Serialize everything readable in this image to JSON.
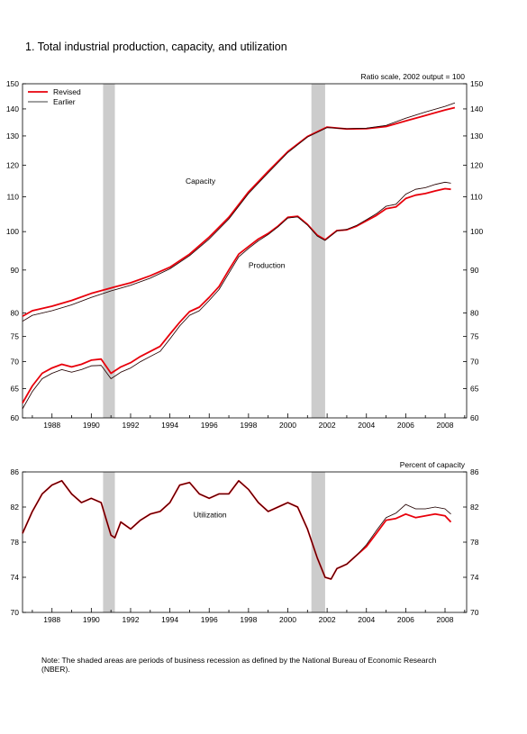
{
  "title": "1. Total industrial production, capacity, and utilization",
  "note": "Note: The shaded areas are periods of business recession as defined by the National Bureau of Economic Research (NBER).",
  "colors": {
    "revised": "#e8000b",
    "earlier": "#000000",
    "recession": "#cccccc"
  },
  "chart_data": [
    {
      "type": "line",
      "scale": "log",
      "scale_note": "Ratio scale, 2002 output = 100",
      "legend": [
        "Revised",
        "Earlier"
      ],
      "legend_position": "top-left",
      "xlim": [
        1986.5,
        2009.1
      ],
      "ylim": [
        60,
        150
      ],
      "x_ticks": [
        "1988",
        "1990",
        "1992",
        "1994",
        "1996",
        "1998",
        "2000",
        "2002",
        "2004",
        "2006",
        "2008"
      ],
      "y_ticks": [
        60,
        65,
        70,
        75,
        80,
        90,
        100,
        110,
        120,
        130,
        140,
        150
      ],
      "recessions": [
        [
          1990.6,
          1991.2
        ],
        [
          2001.2,
          2001.9
        ]
      ],
      "annotations": [
        {
          "text": "Capacity",
          "x": 1994.8,
          "y": 114
        },
        {
          "text": "Production",
          "x": 1998.0,
          "y": 90.5
        }
      ],
      "series": [
        {
          "name": "Revised",
          "label": "Capacity",
          "x": [
            1986.5,
            1987,
            1988,
            1989,
            1990,
            1991,
            1992,
            1993,
            1994,
            1995,
            1996,
            1997,
            1998,
            1999,
            2000,
            2001,
            2002,
            2003,
            2004,
            2005,
            2006,
            2007,
            2008,
            2008.5
          ],
          "y": [
            79.3,
            80.5,
            81.5,
            82.8,
            84.4,
            85.7,
            86.9,
            88.6,
            90.7,
            94.0,
            98.5,
            104.0,
            111.5,
            118.0,
            124.5,
            129.8,
            133.2,
            132.5,
            132.6,
            133.4,
            135.5,
            137.5,
            139.6,
            140.5
          ]
        },
        {
          "name": "Earlier",
          "label": "Capacity",
          "x": [
            1986.5,
            1987,
            1988,
            1989,
            1990,
            1991,
            1992,
            1993,
            1994,
            1995,
            1996,
            1997,
            1998,
            1999,
            2000,
            2001,
            2002,
            2003,
            2004,
            2005,
            2006,
            2007,
            2008,
            2008.5
          ],
          "y": [
            78.2,
            79.5,
            80.5,
            81.8,
            83.5,
            85.0,
            86.3,
            88.0,
            90.3,
            93.6,
            98.0,
            103.5,
            111.0,
            117.5,
            124.2,
            129.6,
            133.0,
            132.6,
            132.8,
            133.8,
            136.5,
            138.8,
            141.0,
            142.3
          ]
        },
        {
          "name": "Revised",
          "label": "Production",
          "x": [
            1986.5,
            1987,
            1987.5,
            1988,
            1988.5,
            1989,
            1989.5,
            1990,
            1990.5,
            1991.0,
            1991.5,
            1992,
            1992.5,
            1993,
            1993.5,
            1994,
            1994.5,
            1995,
            1995.5,
            1996,
            1996.5,
            1997,
            1997.5,
            1998,
            1998.5,
            1999,
            1999.5,
            2000,
            2000.5,
            2001,
            2001.5,
            2001.9,
            2002.5,
            2003,
            2003.5,
            2004,
            2004.5,
            2005,
            2005.5,
            2006,
            2006.5,
            2007,
            2007.5,
            2008,
            2008.3
          ],
          "y": [
            62.5,
            65.5,
            67.8,
            68.8,
            69.5,
            69.0,
            69.5,
            70.3,
            70.5,
            67.8,
            69.0,
            69.8,
            71.0,
            72.0,
            73.0,
            75.5,
            78.0,
            80.3,
            81.3,
            83.5,
            86.0,
            90.0,
            94.0,
            96.0,
            98.0,
            99.5,
            101.5,
            104.0,
            104.3,
            102.0,
            99.0,
            97.8,
            100.3,
            100.5,
            101.5,
            103.0,
            104.5,
            106.5,
            107.0,
            109.5,
            110.5,
            111.0,
            111.8,
            112.5,
            112.3
          ]
        },
        {
          "name": "Earlier",
          "label": "Production",
          "x": [
            1986.5,
            1987,
            1987.5,
            1988,
            1988.5,
            1989,
            1989.5,
            1990,
            1990.5,
            1991.0,
            1991.5,
            1992,
            1992.5,
            1993,
            1993.5,
            1994,
            1994.5,
            1995,
            1995.5,
            1996,
            1996.5,
            1997,
            1997.5,
            1998,
            1998.5,
            1999,
            1999.5,
            2000,
            2000.5,
            2001,
            2001.5,
            2001.9,
            2002.5,
            2003,
            2003.5,
            2004,
            2004.5,
            2005,
            2005.5,
            2006,
            2006.5,
            2007,
            2007.5,
            2008,
            2008.3
          ],
          "y": [
            61.5,
            64.5,
            66.8,
            67.8,
            68.5,
            68.0,
            68.5,
            69.2,
            69.3,
            66.8,
            68.0,
            68.8,
            70.0,
            71.0,
            72.0,
            74.5,
            77.2,
            79.5,
            80.5,
            82.8,
            85.3,
            89.2,
            93.3,
            95.5,
            97.5,
            99.2,
            101.3,
            103.8,
            104.1,
            101.8,
            98.8,
            97.6,
            100.2,
            100.6,
            101.7,
            103.3,
            105.0,
            107.2,
            107.8,
            110.8,
            112.3,
            112.8,
            113.8,
            114.5,
            114.2
          ]
        }
      ]
    },
    {
      "type": "line",
      "scale_note": "Percent of capacity",
      "xlim": [
        1986.5,
        2009.1
      ],
      "ylim": [
        70,
        86
      ],
      "x_ticks": [
        "1988",
        "1990",
        "1992",
        "1994",
        "1996",
        "1998",
        "2000",
        "2002",
        "2004",
        "2006",
        "2008"
      ],
      "y_ticks": [
        70,
        74,
        78,
        82,
        86
      ],
      "recessions": [
        [
          1990.6,
          1991.2
        ],
        [
          2001.2,
          2001.9
        ]
      ],
      "annotations": [
        {
          "text": "Utilization",
          "x": 1995.2,
          "y": 80.8
        }
      ],
      "series": [
        {
          "name": "Revised",
          "label": "Utilization",
          "x": [
            1986.5,
            1987,
            1987.5,
            1988,
            1988.5,
            1989,
            1989.5,
            1990,
            1990.5,
            1991.0,
            1991.2,
            1991.5,
            1992,
            1992.5,
            1993,
            1993.5,
            1994,
            1994.5,
            1995,
            1995.5,
            1996,
            1996.5,
            1997,
            1997.5,
            1998,
            1998.5,
            1999,
            1999.5,
            2000,
            2000.5,
            2001,
            2001.5,
            2001.9,
            2002.2,
            2002.5,
            2003,
            2003.5,
            2004,
            2004.5,
            2005,
            2005.5,
            2006,
            2006.5,
            2007,
            2007.5,
            2008,
            2008.3
          ],
          "y": [
            79.0,
            81.5,
            83.5,
            84.5,
            85.0,
            83.5,
            82.5,
            83.0,
            82.5,
            78.8,
            78.5,
            80.3,
            79.5,
            80.5,
            81.2,
            81.5,
            82.5,
            84.5,
            84.8,
            83.5,
            83.0,
            83.5,
            83.5,
            85.0,
            84.0,
            82.5,
            81.5,
            82.0,
            82.5,
            82.0,
            79.5,
            76.2,
            74.0,
            73.8,
            75.0,
            75.5,
            76.5,
            77.5,
            79.0,
            80.5,
            80.7,
            81.2,
            80.8,
            81.0,
            81.2,
            81.0,
            80.3
          ]
        },
        {
          "name": "Earlier",
          "label": "Utilization",
          "x": [
            1986.5,
            1987,
            1987.5,
            1988,
            1988.5,
            1989,
            1989.5,
            1990,
            1990.5,
            1991.0,
            1991.2,
            1991.5,
            1992,
            1992.5,
            1993,
            1993.5,
            1994,
            1994.5,
            1995,
            1995.5,
            1996,
            1996.5,
            1997,
            1997.5,
            1998,
            1998.5,
            1999,
            1999.5,
            2000,
            2000.5,
            2001,
            2001.5,
            2001.9,
            2002.2,
            2002.5,
            2003,
            2003.5,
            2004,
            2004.5,
            2005,
            2005.5,
            2006,
            2006.5,
            2007,
            2007.5,
            2008,
            2008.3
          ],
          "y": [
            79.0,
            81.5,
            83.5,
            84.5,
            85.0,
            83.5,
            82.5,
            83.0,
            82.5,
            78.8,
            78.5,
            80.3,
            79.5,
            80.5,
            81.2,
            81.5,
            82.5,
            84.5,
            84.8,
            83.5,
            83.0,
            83.5,
            83.5,
            85.0,
            84.0,
            82.5,
            81.5,
            82.0,
            82.5,
            82.0,
            79.5,
            76.2,
            74.0,
            73.8,
            75.0,
            75.5,
            76.5,
            77.7,
            79.3,
            80.8,
            81.3,
            82.3,
            81.8,
            81.8,
            82.0,
            81.8,
            81.2
          ]
        }
      ]
    }
  ]
}
